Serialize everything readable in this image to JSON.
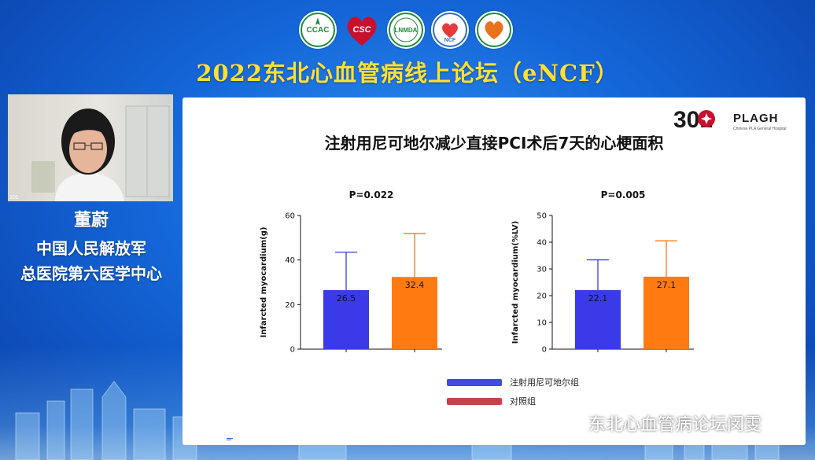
{
  "banner": {
    "title": "2022东北心血管病线上论坛（eNCF）",
    "logos": [
      {
        "icon": "ccac-logo-icon",
        "text": "CCAC",
        "color": "#1d8a3a"
      },
      {
        "icon": "csc-logo-icon",
        "text": "CSC",
        "color": "#c8102e"
      },
      {
        "icon": "lnmda-logo-icon",
        "text": "LNMDA",
        "color": "#1d8a3a"
      },
      {
        "icon": "ncf-logo-icon",
        "text": "NCF",
        "color": "#2a6fc9"
      },
      {
        "icon": "heart-society-logo-icon",
        "text": "",
        "color": "#e8731a"
      }
    ]
  },
  "video": {
    "tag": "101"
  },
  "speaker": {
    "name": "董蔚",
    "affiliation_line1": "中国人民解放军",
    "affiliation_line2": "总医院第六医学中心"
  },
  "slide": {
    "title": "注射用尼可地尔减少直接PCI术后7天的心梗面积",
    "brand": "PLAGH",
    "brand_sub": "Chinese PLA General Hospital",
    "brand_number": "301"
  },
  "chart_data": [
    {
      "type": "bar",
      "title": "P=0.022",
      "ylabel": "Infarcted myocardium(g)",
      "ylim": [
        0,
        60
      ],
      "yticks": [
        0,
        20,
        40,
        60
      ],
      "categories": [
        "注射用尼可地尔组",
        "对照组"
      ],
      "values": [
        26.5,
        32.4
      ],
      "errors": [
        17.0,
        19.5
      ],
      "labels": [
        "26.5",
        "32.4"
      ]
    },
    {
      "type": "bar",
      "title": "P=0.005",
      "ylabel": "Infarcted myocardium(%LV)",
      "ylim": [
        0,
        50
      ],
      "yticks": [
        0,
        10,
        20,
        30,
        40,
        50
      ],
      "categories": [
        "注射用尼可地尔组",
        "对照组"
      ],
      "values": [
        22.1,
        27.1
      ],
      "errors": [
        11.3,
        13.4
      ],
      "labels": [
        "22.1",
        "27.1"
      ]
    }
  ],
  "legend": [
    {
      "label": "注射用尼可地尔组",
      "color": "#3a4fe0"
    },
    {
      "label": "对照组",
      "color": "#c8424e"
    }
  ],
  "colors": {
    "bar1": "#3a3ae8",
    "bar2": "#ff7a10",
    "title": "#ffe033"
  },
  "toolbar": {
    "icons": [
      "arrow-left-icon",
      "pen-icon",
      "message-icon",
      "arrow-right-icon"
    ]
  },
  "watermark": {
    "text": "东北心血管病论坛闵雯"
  }
}
